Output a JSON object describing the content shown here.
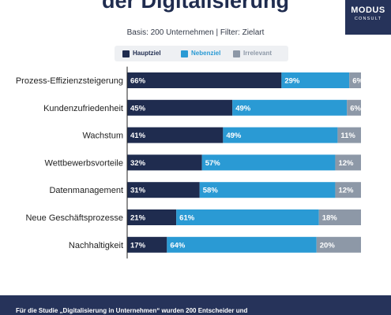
{
  "header": {
    "title": "der Digitalisierung",
    "subtitle": "Basis: 200 Unternehmen | Filter: Zielart"
  },
  "logo": {
    "line1": "MODUS",
    "line2": "CONSULT"
  },
  "legend": [
    {
      "label": "Hauptziel",
      "color": "#1f2c4f"
    },
    {
      "label": "Nebenziel",
      "color": "#2a9ad4"
    },
    {
      "label": "Irrelevant",
      "color": "#8d98a7"
    }
  ],
  "chart_data": {
    "type": "bar",
    "orientation": "horizontal",
    "stacked": true,
    "title": "der Digitalisierung",
    "subtitle": "Basis: 200 Unternehmen | Filter: Zielart",
    "categories": [
      "Prozess-Effizienzsteigerung",
      "Kundenzufriedenheit",
      "Wachstum",
      "Wettbewerbsvorteile",
      "Datenmanagement",
      "Neue Geschäftsprozesse",
      "Nachhaltigkeit"
    ],
    "series": [
      {
        "name": "Hauptziel",
        "color": "#1f2c4f",
        "values": [
          66,
          45,
          41,
          32,
          31,
          21,
          17
        ]
      },
      {
        "name": "Nebenziel",
        "color": "#2a9ad4",
        "values": [
          29,
          49,
          49,
          57,
          58,
          61,
          64
        ]
      },
      {
        "name": "Irrelevant",
        "color": "#8d98a7",
        "values": [
          6,
          6,
          11,
          12,
          12,
          18,
          20
        ]
      }
    ],
    "value_suffix": "%",
    "xlim": [
      0,
      100
    ],
    "legend_position": "top",
    "grid": false
  },
  "footer": {
    "text": "Für die Studie „Digitalisierung in Unternehmen“ wurden 200 Entscheider und"
  }
}
